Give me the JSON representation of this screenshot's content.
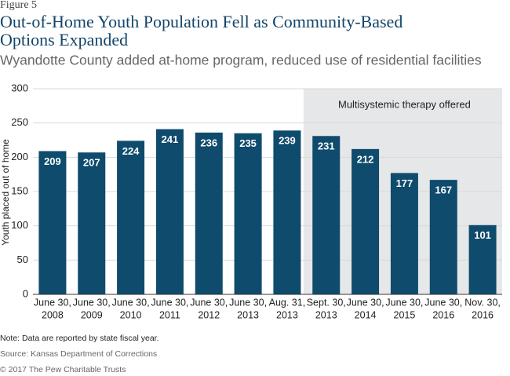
{
  "chart_data": {
    "type": "bar",
    "figure_label": "Figure 5",
    "title": "Out-of-Home Youth Population Fell as Community-Based Options Expanded",
    "subtitle": "Wyandotte County added at-home program, reduced use of residential facilities",
    "y_label": "Youth placed out of home",
    "annotation": "Multisystemic therapy offered",
    "categories": [
      [
        "June 30,",
        "2008"
      ],
      [
        "June 30,",
        "2009"
      ],
      [
        "June 30,",
        "2010"
      ],
      [
        "June 30,",
        "2011"
      ],
      [
        "June 30,",
        "2012"
      ],
      [
        "June 30,",
        "2013"
      ],
      [
        "Aug. 31,",
        "2013"
      ],
      [
        "Sept. 30,",
        "2013"
      ],
      [
        "June 30,",
        "2014"
      ],
      [
        "June 30,",
        "2015"
      ],
      [
        "June 30,",
        "2016"
      ],
      [
        "Nov. 30,",
        "2016"
      ]
    ],
    "values": [
      209,
      207,
      224,
      241,
      236,
      235,
      239,
      231,
      212,
      177,
      167,
      101
    ],
    "color": "#0f4b6c",
    "ylim": [
      0,
      300
    ],
    "yticks": [
      0,
      50,
      100,
      150,
      200,
      250,
      300
    ],
    "grid": true,
    "note": "Note: Data are reported by state fiscal year.",
    "source": "Source: Kansas Department of Corrections",
    "copyright": "© 2017 The Pew Charitable Trusts"
  }
}
